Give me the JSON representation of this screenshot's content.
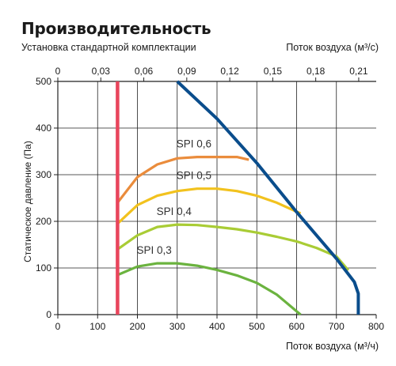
{
  "chart_data": {
    "type": "line",
    "title": "Производительность",
    "subtitle": "Установка стандартной комплектации",
    "xlabel": "Поток воздуха (м³/ч)",
    "x2label": "Поток воздуха (м³/с)",
    "ylabel": "Статическое давление (Па)",
    "xlim": [
      0,
      800
    ],
    "x2lim": [
      0,
      0.2222
    ],
    "ylim": [
      0,
      500
    ],
    "xticks": [
      "0",
      "100",
      "200",
      "300",
      "400",
      "500",
      "600",
      "700",
      "800"
    ],
    "x2ticks": [
      "0",
      "0,03",
      "0,06",
      "0,09",
      "0,12",
      "0,15",
      "0,18",
      "0,21"
    ],
    "yticks": [
      "0",
      "100",
      "200",
      "300",
      "400",
      "500"
    ],
    "grid": true,
    "series": [
      {
        "name": "",
        "color": "#e8455c",
        "role": "min-line",
        "x": [
          150,
          150
        ],
        "y": [
          0,
          500
        ]
      },
      {
        "name": "",
        "color": "#0a4d8c",
        "role": "max-line",
        "x": [
          300,
          400,
          500,
          600,
          700,
          745,
          755,
          755
        ],
        "y": [
          500,
          420,
          325,
          220,
          120,
          70,
          45,
          0
        ]
      },
      {
        "name": "SPI 0,6",
        "color": "#ea8c3c",
        "x": [
          150,
          200,
          250,
          300,
          350,
          400,
          450,
          480
        ],
        "y": [
          240,
          295,
          322,
          335,
          338,
          338,
          338,
          332
        ]
      },
      {
        "name": "SPI 0,5",
        "color": "#f2c21e",
        "x": [
          150,
          200,
          250,
          300,
          350,
          400,
          450,
          500,
          550,
          610
        ],
        "y": [
          195,
          235,
          255,
          265,
          270,
          270,
          265,
          255,
          240,
          217
        ]
      },
      {
        "name": "SPI 0,4",
        "color": "#a9cc35",
        "x": [
          150,
          200,
          250,
          300,
          350,
          400,
          450,
          500,
          550,
          600,
          650,
          700,
          730
        ],
        "y": [
          140,
          170,
          188,
          193,
          192,
          188,
          183,
          176,
          167,
          157,
          143,
          125,
          95
        ]
      },
      {
        "name": "SPI 0,3",
        "color": "#6bb33f",
        "x": [
          150,
          200,
          250,
          300,
          350,
          400,
          450,
          500,
          550,
          610
        ],
        "y": [
          85,
          103,
          110,
          110,
          105,
          96,
          84,
          68,
          43,
          0
        ]
      }
    ]
  }
}
